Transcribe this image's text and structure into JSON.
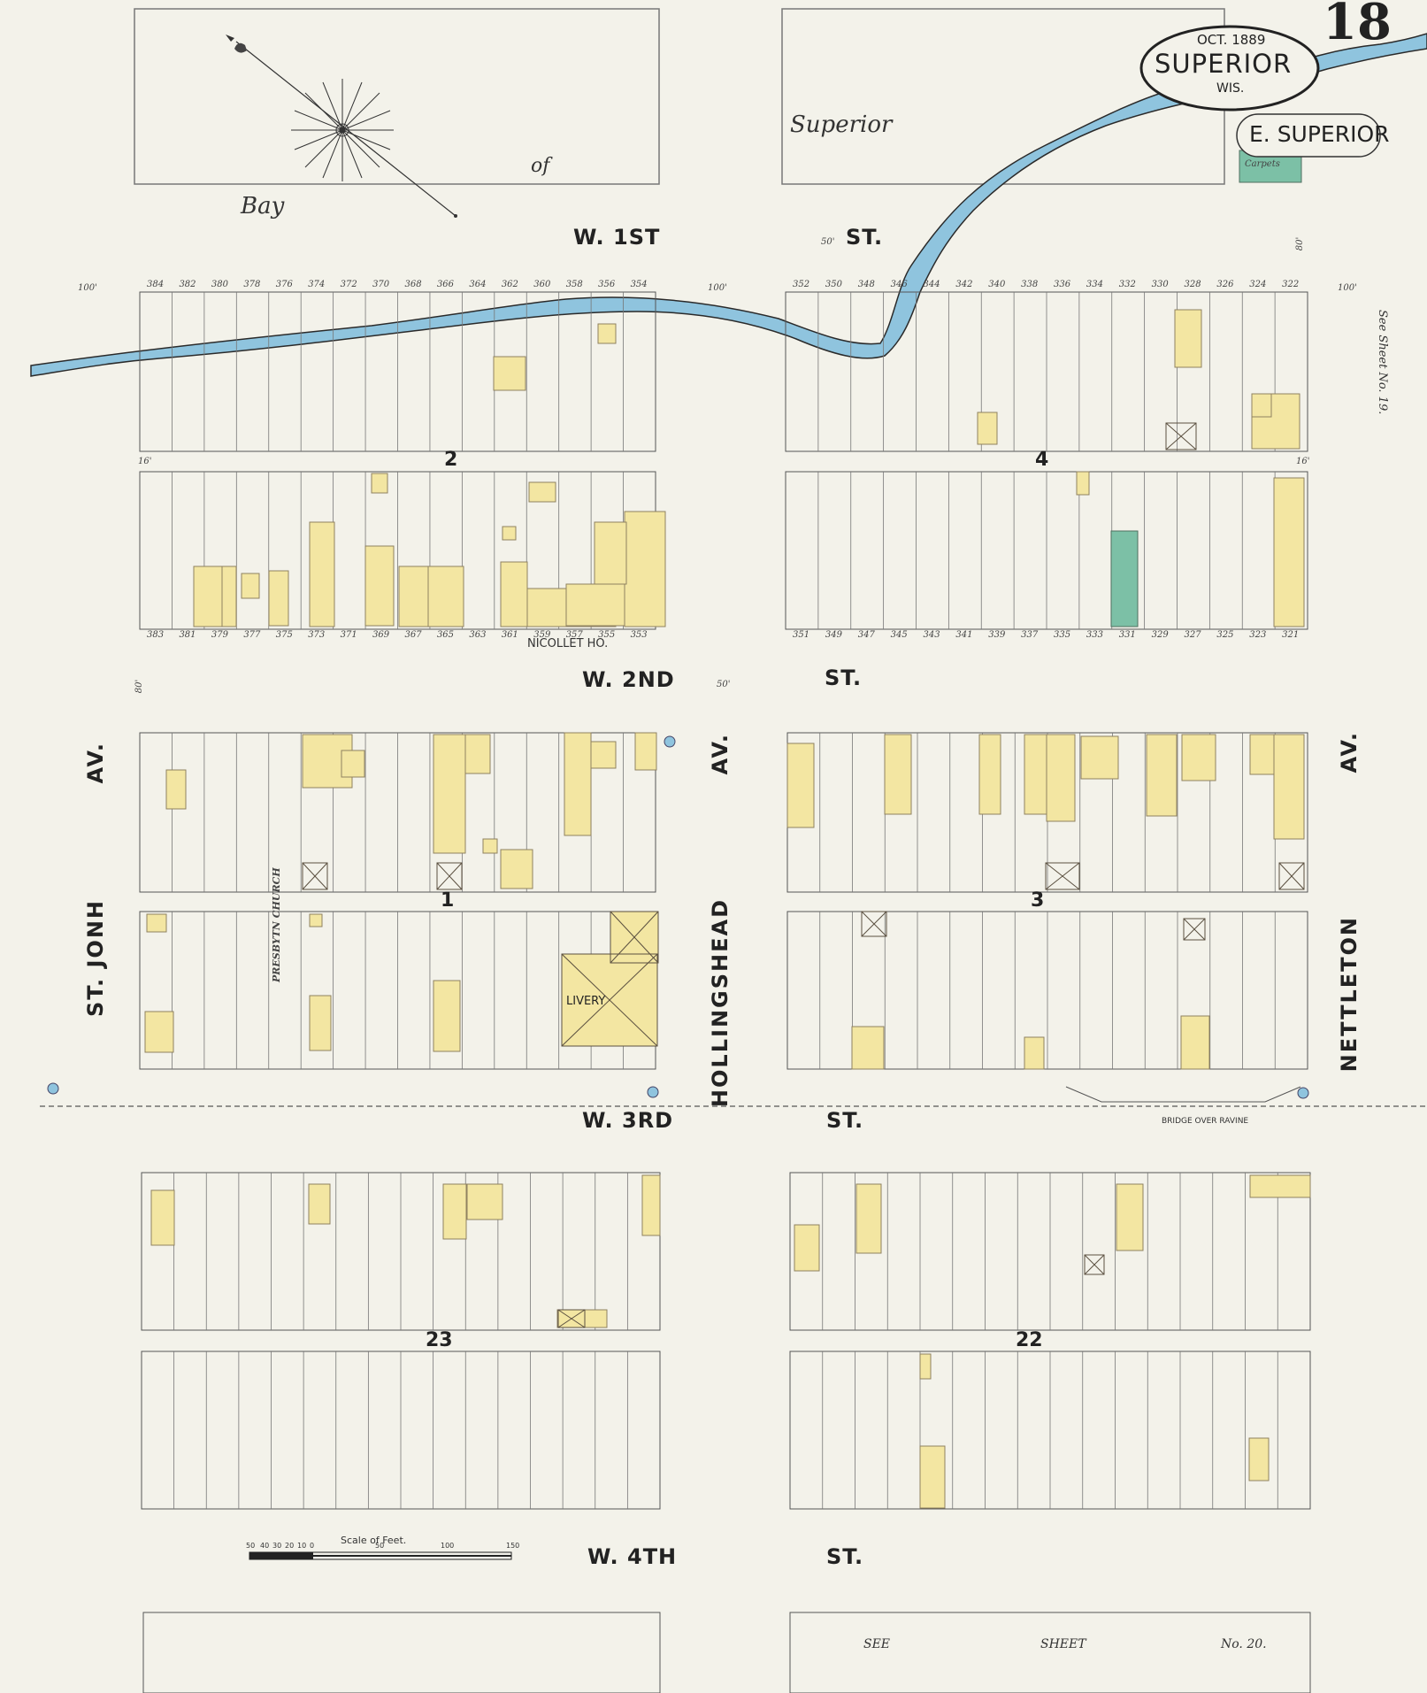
{
  "header": {
    "date": "OCT. 1889",
    "city": "SUPERIOR",
    "state": "WIS.",
    "sheet_number": "18",
    "district": "E. SUPERIOR"
  },
  "water": {
    "bay_words": [
      "Bay",
      "of",
      "Superior"
    ]
  },
  "streets": {
    "w1": "W. 1ST",
    "w2": "W. 2ND",
    "w3": "W. 3RD",
    "w4": "W. 4TH",
    "st": "ST."
  },
  "avenues": {
    "left": "ST. JONH",
    "middle": "HOLLINGSHEAD",
    "right": "NETTLETON",
    "av": "AV."
  },
  "blocks": [
    "2",
    "4",
    "1",
    "3",
    "23",
    "22"
  ],
  "landmarks": {
    "nicollet": "NICOLLET HO.",
    "livery": "LIVERY",
    "church": "PRESBYTN CHURCH",
    "bridge": "BRIDGE OVER RAVINE",
    "see_sheet_right": "See Sheet No. 19.",
    "see_sheet_bottom": [
      "SEE",
      "SHEET",
      "No. 20."
    ],
    "carpet": "Carpets"
  },
  "scale": {
    "title": "Scale of Feet.",
    "ticks": [
      "50",
      "40",
      "30",
      "20",
      "10",
      "0",
      "50",
      "100",
      "150"
    ]
  },
  "colors": {
    "paper": "#f3f2ea",
    "frame": "#777777",
    "water": "#8fc4de",
    "frame_bld": "#f3e6a2",
    "frame_bld_stroke": "#8f8160",
    "brick_bld": "#7cc0a6"
  },
  "lot_numbers": {
    "block2_top": [
      "384",
      "382",
      "380",
      "378",
      "376",
      "374",
      "372",
      "370",
      "368",
      "366",
      "364",
      "362",
      "360",
      "358",
      "356",
      "354"
    ],
    "block2_bot": [
      "383",
      "381",
      "379",
      "377",
      "375",
      "373",
      "371",
      "369",
      "367",
      "365",
      "363",
      "361",
      "359",
      "357",
      "355",
      "353"
    ],
    "block4_top": [
      "352",
      "350",
      "348",
      "346",
      "344",
      "342",
      "340",
      "338",
      "336",
      "334",
      "332",
      "330",
      "328",
      "326",
      "324",
      "322"
    ],
    "block4_bot": [
      "351",
      "349",
      "347",
      "345",
      "343",
      "341",
      "339",
      "337",
      "335",
      "333",
      "331",
      "329",
      "327",
      "325",
      "323",
      "321"
    ]
  },
  "dimensions": [
    "100'",
    "80'",
    "50'",
    "16'"
  ]
}
